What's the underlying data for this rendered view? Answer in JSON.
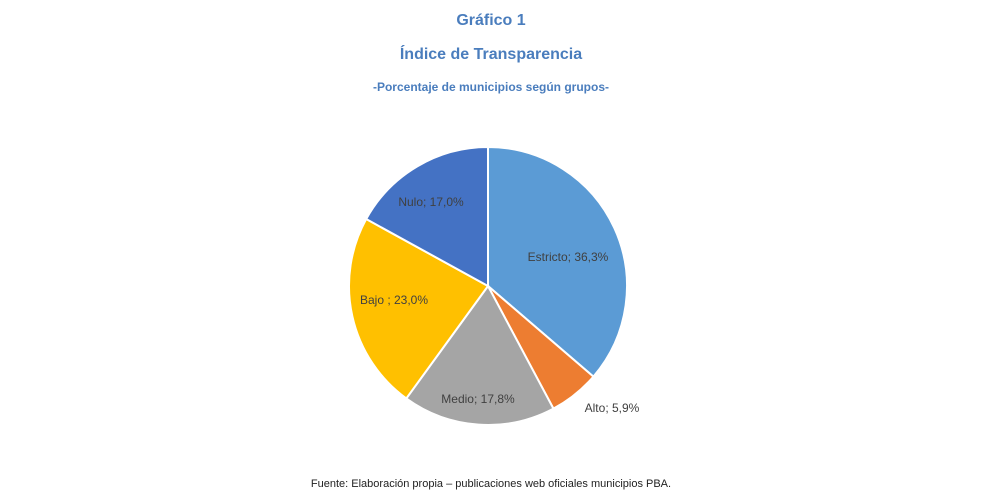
{
  "header": {
    "chart_number": "Gráfico 1",
    "title": "Índice de Transparencia",
    "subtitle": "-Porcentaje de municipios según grupos-"
  },
  "source": "Fuente: Elaboración propia – publicaciones web oficiales municipios PBA.",
  "chart_data": {
    "type": "pie",
    "title": "Índice de Transparencia",
    "subtitle": "-Porcentaje de municipios según grupos-",
    "unit": "%",
    "slices": [
      {
        "category": "Estricto",
        "value": 36.3,
        "label": "Estricto; 36,3%",
        "color": "#5b9bd5"
      },
      {
        "category": "Alto",
        "value": 5.9,
        "label": "Alto; 5,9%",
        "color": "#ed7d31"
      },
      {
        "category": "Medio",
        "value": 17.8,
        "label": "Medio; 17,8%",
        "color": "#a5a5a5"
      },
      {
        "category": "Bajo",
        "value": 23.0,
        "label": "Bajo ; 23,0%",
        "color": "#ffc000"
      },
      {
        "category": "Nulo",
        "value": 17.0,
        "label": "Nulo; 17,0%",
        "color": "#4472c4"
      }
    ],
    "start_angle": "12 o'clock, clockwise",
    "legend": "none",
    "data_labels": "category; percentage"
  }
}
